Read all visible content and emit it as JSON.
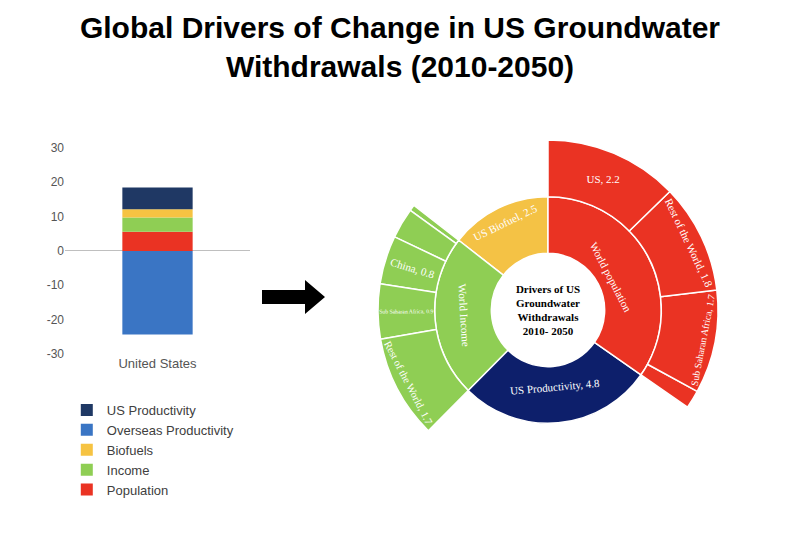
{
  "title": [
    "Global Drivers of Change in US Groundwater",
    "Withdrawals (2010-2050)"
  ],
  "chart_data": [
    {
      "type": "bar",
      "stacked": true,
      "categories": [
        "United States"
      ],
      "ylim": [
        -30,
        30
      ],
      "yticks": [
        -30,
        -20,
        -10,
        0,
        10,
        20,
        30
      ],
      "grid": false,
      "legend": "bottom left",
      "series": [
        {
          "name": "US Productivity",
          "color": "#1f3864",
          "values": [
            6.4
          ]
        },
        {
          "name": "Overseas Productivity",
          "color": "#3a75c4",
          "values": [
            -24.4
          ]
        },
        {
          "name": "Biofuels",
          "color": "#f6c342",
          "values": [
            2.4
          ]
        },
        {
          "name": "Income",
          "color": "#8fce54",
          "values": [
            4.1
          ]
        },
        {
          "name": "Population",
          "color": "#ea3323",
          "values": [
            5.6
          ]
        }
      ]
    },
    {
      "type": "sunburst",
      "data_labels": true,
      "center_label": [
        "Drivers of US",
        "Groundwater",
        "Withdrawals",
        "2010- 2050"
      ],
      "nodes": [
        {
          "label": "World population",
          "color": "#ea3323",
          "children": [
            {
              "label": "US, 2.2",
              "value": 2.2
            },
            {
              "label": "Rest of the World, 1.8",
              "value": 1.8
            },
            {
              "label": "Sub Saharan Africa, 1.7",
              "value": 1.7
            },
            {
              "label": null,
              "value": 0.3
            }
          ]
        },
        {
          "label": "US Productivity, 4.8",
          "value": 4.8,
          "color": "#0d1f6b"
        },
        {
          "label": "World Income",
          "color": "#8fce54",
          "children": [
            {
              "label": "Rest of the World, 1.7",
              "value": 1.7
            },
            {
              "label": "Sub Saharan Africa, 0.9",
              "value": 0.9
            },
            {
              "label": "China, 0.8",
              "value": 0.8
            },
            {
              "label": null,
              "value": 0.5
            },
            {
              "label": null,
              "value": 0.1
            }
          ]
        },
        {
          "label": "US Biofuel, 2.5",
          "value": 2.5,
          "color": "#f4c245"
        }
      ]
    }
  ]
}
